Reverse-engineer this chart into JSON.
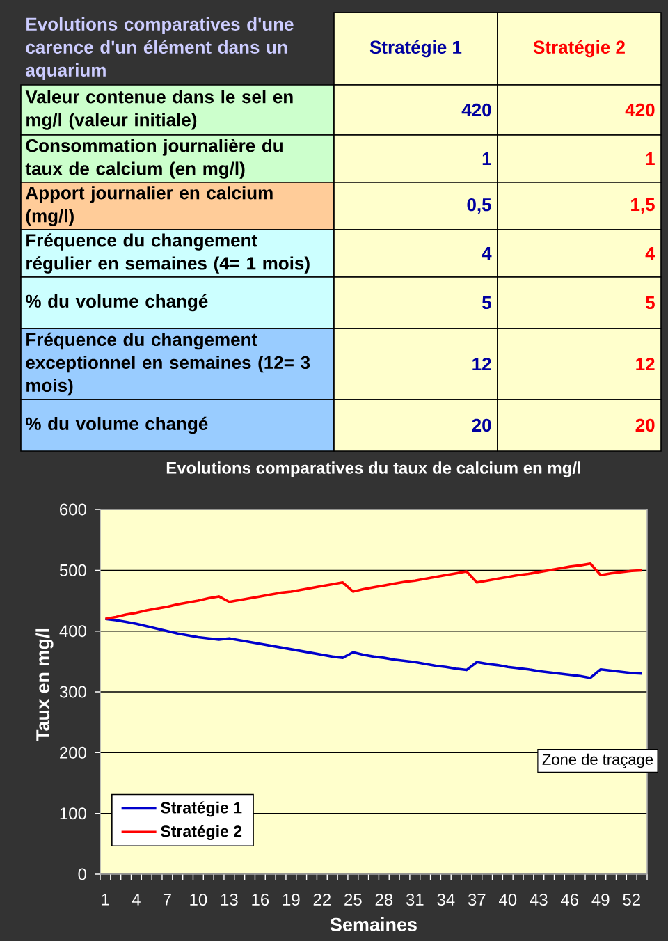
{
  "chart_data": [
    {
      "type": "other",
      "title": "Evolutions comparatives d'une carence d'un élément dans un aquarium",
      "categories": [
        "Stratégie 1",
        "Stratégie 2"
      ],
      "y_categories": [
        "Valeur contenue dans le sel en mg/l (valeur initiale)",
        "Consommation journalière du taux de calcium (en mg/l)",
        "Apport journalier en calcium (mg/l)",
        "Fréquence du changement régulier en semaines (4= 1 mois)",
        "% du volume changé",
        "Fréquence du changement exceptionnel en semaines (12= 3 mois)",
        "% du volume changé"
      ],
      "cell_labels": [
        [
          "420",
          "420"
        ],
        [
          "1",
          "1"
        ],
        [
          "0,5",
          "1,5"
        ],
        [
          "4",
          "4"
        ],
        [
          "5",
          "5"
        ],
        [
          "12",
          "12"
        ],
        [
          "20",
          "20"
        ]
      ]
    },
    {
      "type": "line",
      "title": "Evolutions comparatives du taux de calcium en mg/l",
      "xlabel": "Semaines",
      "ylabel": "Taux en mg/l",
      "categories": [
        "1",
        null,
        null,
        "4",
        null,
        null,
        "7",
        null,
        null,
        "10",
        null,
        null,
        "13",
        null,
        null,
        "16",
        null,
        null,
        "19",
        null,
        null,
        "22",
        null,
        null,
        "25",
        null,
        null,
        "28",
        null,
        null,
        "31",
        null,
        null,
        "34",
        null,
        null,
        "37",
        null,
        null,
        "40",
        null,
        null,
        "43",
        null,
        null,
        "46",
        null,
        null,
        "49",
        null,
        null,
        "52",
        null
      ],
      "series": [
        {
          "name": "Stratégie 1",
          "color": "#0000CC",
          "values": [
            420,
            418,
            415,
            412,
            408,
            404,
            400,
            396,
            393,
            390,
            388,
            386,
            388,
            385,
            382,
            379,
            376,
            373,
            370,
            367,
            364,
            361,
            358,
            356,
            365,
            361,
            358,
            356,
            353,
            351,
            349,
            346,
            343,
            341,
            338,
            336,
            349,
            346,
            344,
            341,
            339,
            337,
            334,
            332,
            330,
            328,
            326,
            323,
            337,
            335,
            333,
            331,
            330
          ]
        },
        {
          "name": "Stratégie 2",
          "color": "#FF0000",
          "values": [
            420,
            423,
            427,
            430,
            434,
            437,
            440,
            444,
            447,
            450,
            454,
            457,
            448,
            451,
            454,
            457,
            460,
            463,
            465,
            468,
            471,
            474,
            477,
            480,
            465,
            469,
            472,
            475,
            478,
            481,
            483,
            486,
            489,
            492,
            495,
            498,
            480,
            483,
            486,
            489,
            492,
            494,
            497,
            500,
            503,
            506,
            508,
            511,
            492,
            495,
            497,
            499,
            500
          ]
        }
      ],
      "ylim": [
        0,
        600
      ],
      "yticks": [
        0,
        100,
        200,
        300,
        400,
        500,
        600
      ],
      "grid": "y",
      "legend": "bottom left",
      "marker": "none",
      "line_style": "solid",
      "annotations": [
        "Zone de traçage"
      ]
    }
  ]
}
